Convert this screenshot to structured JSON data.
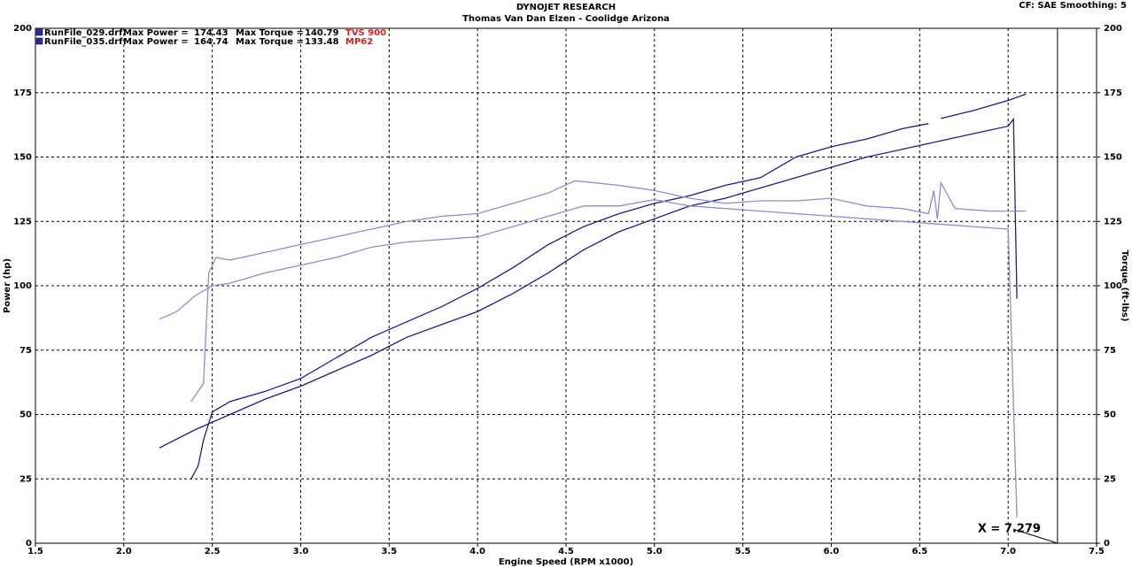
{
  "chart_data": {
    "type": "line",
    "title": "DYNOJET RESEARCH",
    "subtitle": "Thomas Van Dan Elzen - Coolidge Arizona",
    "settings_text": "CF: SAE  Smoothing: 5",
    "xlabel": "Engine Speed (RPM x1000)",
    "ylabel": "Power (hp)",
    "y2label": "Torque (ft-lbs)",
    "xlim": [
      1.5,
      7.5
    ],
    "xticks": [
      1.5,
      {
        "value": 2,
        "label": "2.0"
      },
      2.5,
      {
        "value": 3,
        "label": "3.0"
      },
      3.5,
      {
        "value": 4,
        "label": "4.0"
      },
      4.5,
      {
        "value": 5,
        "label": "5.0"
      },
      5.5,
      {
        "value": 6,
        "label": "6.0"
      },
      6.5,
      {
        "value": 7,
        "label": "7.0"
      },
      7.5
    ],
    "ylim": [
      0,
      200
    ],
    "yticks": [
      0,
      25,
      50,
      75,
      100,
      125,
      150,
      175,
      200
    ],
    "y2lim": [
      0,
      200
    ],
    "y2ticks": [
      0,
      25,
      50,
      75,
      100,
      125,
      150,
      175,
      200
    ],
    "grid": true,
    "cursor": {
      "value": 7.279,
      "label": "X = 7.279"
    },
    "legend": [
      {
        "name": "RunFile_029.drf",
        "power_label": "Max Power =",
        "max_power": 174.43,
        "torque_label": "Max Torque =",
        "max_torque": 140.79,
        "tag": "TVS 900",
        "color": "#2a2ab0"
      },
      {
        "name": "RunFile_035.drf",
        "power_label": "Max Power =",
        "max_power": 164.74,
        "torque_label": "Max Torque =",
        "max_torque": 133.48,
        "tag": "MP62",
        "color": "#2a2ab0"
      }
    ],
    "series": [
      {
        "color": "#1c1c8a",
        "x": [
          2.38,
          2.42,
          2.45,
          2.5,
          2.6,
          2.8,
          3.0,
          3.2,
          3.4,
          3.6,
          3.8,
          4.0,
          4.2,
          4.4,
          4.6,
          4.8,
          5.0,
          5.2,
          5.4,
          5.6,
          5.8,
          6.0,
          6.2,
          6.4,
          6.55,
          6.58,
          6.62,
          6.8,
          7.0,
          7.1
        ],
        "values": [
          25,
          30,
          40,
          51,
          55,
          59,
          64,
          72,
          80,
          86,
          92,
          99,
          107,
          116,
          123,
          128,
          132,
          135,
          139,
          142,
          150,
          154,
          157,
          161,
          163,
          null,
          165,
          168,
          172,
          174.43
        ]
      },
      {
        "color": "#1c1c8a",
        "x": [
          2.2,
          2.4,
          2.5,
          2.6,
          2.8,
          3.0,
          3.2,
          3.4,
          3.6,
          3.8,
          4.0,
          4.2,
          4.4,
          4.6,
          4.8,
          5.0,
          5.2,
          5.4,
          5.6,
          5.8,
          6.0,
          6.2,
          6.4,
          6.6,
          6.8,
          7.0,
          7.03,
          7.05
        ],
        "values": [
          37,
          44,
          47,
          50,
          56,
          61,
          67,
          73,
          80,
          85,
          90,
          97,
          105,
          114,
          121,
          126,
          131,
          134,
          138,
          142,
          146,
          150,
          153,
          156,
          159,
          162,
          164.74,
          95
        ]
      },
      {
        "color": "#8c8cd2",
        "axis": "y2",
        "x": [
          2.38,
          2.45,
          2.48,
          2.52,
          2.6,
          2.8,
          3.0,
          3.2,
          3.4,
          3.6,
          3.8,
          4.0,
          4.2,
          4.4,
          4.55,
          4.8,
          5.0,
          5.2,
          5.4,
          5.6,
          5.8,
          6.0,
          6.2,
          6.4,
          6.55,
          6.58,
          6.6,
          6.62,
          6.7,
          6.9,
          7.1
        ],
        "values": [
          55,
          62,
          105,
          111,
          110,
          113,
          116,
          119,
          122,
          125,
          127,
          128,
          132,
          136,
          140.79,
          139,
          137,
          134,
          132,
          133,
          133,
          134,
          131,
          130,
          128,
          137,
          126,
          140,
          130,
          129,
          129
        ]
      },
      {
        "color": "#8c8cd2",
        "axis": "y2",
        "x": [
          2.2,
          2.3,
          2.4,
          2.5,
          2.6,
          2.8,
          3.0,
          3.2,
          3.4,
          3.6,
          3.8,
          4.0,
          4.2,
          4.4,
          4.6,
          4.8,
          5.0,
          5.2,
          5.4,
          5.6,
          5.8,
          6.0,
          6.2,
          6.4,
          6.6,
          6.8,
          7.0,
          7.05
        ],
        "values": [
          87,
          90,
          96,
          100,
          101,
          105,
          108,
          111,
          115,
          117,
          118,
          119,
          123,
          127,
          131,
          131,
          133.48,
          131,
          130,
          129,
          128,
          127,
          126,
          125,
          124,
          123,
          122,
          10
        ]
      }
    ]
  }
}
